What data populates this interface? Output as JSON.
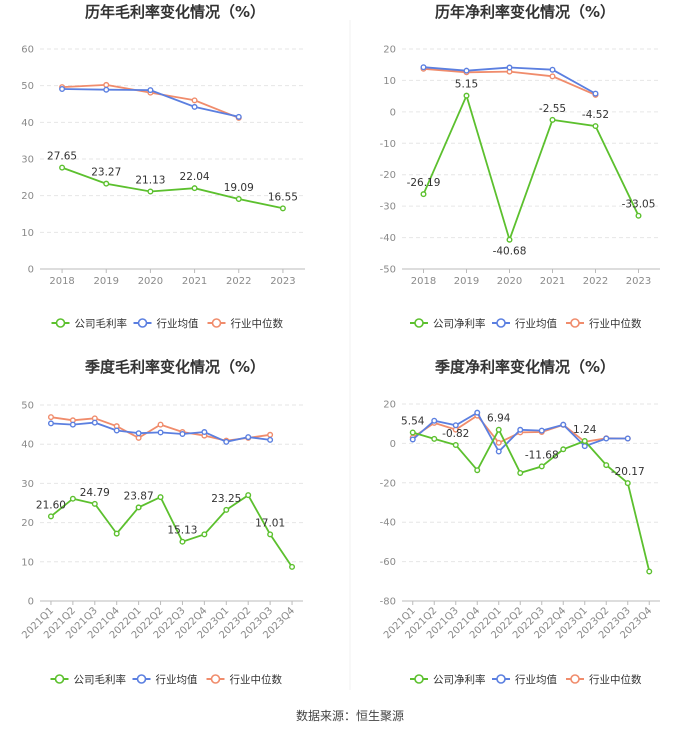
{
  "source": "数据来源：恒生聚源",
  "colors": {
    "company": "#5cc02e",
    "avg": "#5b7fe0",
    "median": "#f08c6c",
    "grid": "#e6e6e6",
    "axis": "#bbbbbb"
  },
  "chart_data": [
    {
      "type": "line",
      "title": "历年毛利率变化情况（%）",
      "categories": [
        "2018",
        "2019",
        "2020",
        "2021",
        "2022",
        "2023"
      ],
      "ylim": [
        0,
        60
      ],
      "yticks": [
        0,
        10,
        20,
        30,
        40,
        50,
        60
      ],
      "series": [
        {
          "name": "公司毛利率",
          "key": "company",
          "values": [
            27.65,
            23.27,
            21.13,
            22.04,
            19.09,
            16.55
          ],
          "labels": [
            "27.65",
            "23.27",
            "21.13",
            "22.04",
            "19.09",
            "16.55"
          ]
        },
        {
          "name": "行业均值",
          "key": "avg",
          "values": [
            49.1,
            48.9,
            48.8,
            44.2,
            41.5,
            null
          ],
          "labels": null
        },
        {
          "name": "行业中位数",
          "key": "median",
          "values": [
            49.6,
            50.2,
            48.1,
            46.0,
            41.2,
            null
          ],
          "labels": null
        }
      ]
    },
    {
      "type": "line",
      "title": "历年净利率变化情况（%）",
      "categories": [
        "2018",
        "2019",
        "2020",
        "2021",
        "2022",
        "2023"
      ],
      "ylim": [
        -50,
        20
      ],
      "yticks": [
        -50,
        -40,
        -30,
        -20,
        -10,
        0,
        10,
        20
      ],
      "series": [
        {
          "name": "公司净利率",
          "key": "company",
          "values": [
            -26.19,
            5.15,
            -40.68,
            -2.55,
            -4.52,
            -33.05
          ],
          "labels": [
            "-26.19",
            "5.15",
            "-40.68",
            "-2.55",
            "-4.52",
            "-33.05"
          ]
        },
        {
          "name": "行业均值",
          "key": "avg",
          "values": [
            14.2,
            13.1,
            14.1,
            13.4,
            5.8,
            null
          ],
          "labels": null
        },
        {
          "name": "行业中位数",
          "key": "median",
          "values": [
            13.7,
            12.6,
            12.8,
            11.3,
            5.4,
            null
          ],
          "labels": null
        }
      ]
    },
    {
      "type": "line",
      "title": "季度毛利率变化情况（%）",
      "categories": [
        "2021Q1",
        "2021Q2",
        "2021Q3",
        "2021Q4",
        "2022Q1",
        "2022Q2",
        "2022Q3",
        "2022Q4",
        "2023Q1",
        "2023Q2",
        "2023Q3",
        "2023Q4"
      ],
      "ylim": [
        0,
        50
      ],
      "yticks": [
        0,
        10,
        20,
        30,
        40,
        50
      ],
      "series": [
        {
          "name": "公司毛利率",
          "key": "company",
          "values": [
            21.6,
            26.1,
            24.79,
            17.2,
            23.87,
            26.5,
            15.13,
            17.0,
            23.25,
            27.0,
            17.01,
            8.7
          ],
          "labels": [
            "21.60",
            null,
            "24.79",
            null,
            "23.87",
            null,
            "15.13",
            null,
            "23.25",
            null,
            "17.01",
            null
          ]
        },
        {
          "name": "行业均值",
          "key": "avg",
          "values": [
            45.3,
            45.0,
            45.5,
            43.5,
            42.8,
            43.0,
            42.6,
            43.1,
            40.6,
            41.8,
            41.1,
            null
          ],
          "labels": null
        },
        {
          "name": "行业中位数",
          "key": "median",
          "values": [
            46.9,
            46.1,
            46.6,
            44.6,
            41.6,
            45.0,
            43.1,
            42.2,
            40.9,
            41.6,
            42.4,
            null
          ],
          "labels": null
        }
      ]
    },
    {
      "type": "line",
      "title": "季度净利率变化情况（%）",
      "categories": [
        "2021Q1",
        "2021Q2",
        "2021Q3",
        "2021Q4",
        "2022Q1",
        "2022Q2",
        "2022Q3",
        "2022Q4",
        "2023Q1",
        "2023Q2",
        "2023Q3",
        "2023Q4"
      ],
      "ylim": [
        -80,
        20
      ],
      "yticks": [
        -80,
        -60,
        -40,
        -20,
        0,
        20
      ],
      "series": [
        {
          "name": "公司净利率",
          "key": "company",
          "values": [
            5.54,
            2.3,
            -0.82,
            -13.6,
            6.94,
            -15.0,
            -11.68,
            -3.0,
            1.24,
            -11.0,
            -20.17,
            -65.0
          ],
          "labels": [
            "5.54",
            null,
            "-0.82",
            null,
            "6.94",
            null,
            "-11.68",
            null,
            "1.24",
            null,
            "-20.17",
            null
          ]
        },
        {
          "name": "行业均值",
          "key": "avg",
          "values": [
            2.0,
            11.5,
            9.2,
            15.6,
            -4.1,
            6.9,
            6.5,
            9.5,
            -1.4,
            2.5,
            2.5,
            null
          ],
          "labels": null
        },
        {
          "name": "行业中位数",
          "key": "median",
          "values": [
            3.0,
            10.4,
            7.0,
            14.1,
            0.3,
            5.6,
            5.8,
            9.4,
            0.8,
            2.6,
            2.5,
            null
          ],
          "labels": null
        }
      ]
    }
  ]
}
